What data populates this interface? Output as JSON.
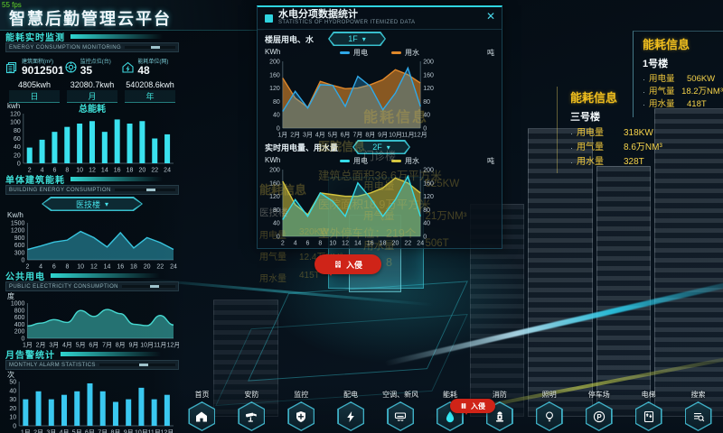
{
  "fps": "55 fps",
  "header": {
    "title": "智慧后勤管理云平台"
  },
  "sidebar": {
    "sections": {
      "monitor": {
        "title": "能耗实时监测",
        "subtitle": "ENERGY CONSUMPTION MONITORING"
      },
      "building": {
        "title": "单体建筑能耗",
        "subtitle": "BUILDING ENERGY CONSUMPTION",
        "dropdown": "医技楼"
      },
      "public": {
        "title": "公共用电",
        "subtitle": "PUBLIC ELECTRICITY CONSUMPTION"
      },
      "alarm": {
        "title": "月告警统计",
        "subtitle": "MONTHLY ALARM STATISTICS"
      }
    },
    "stats": [
      {
        "icon": "building-area-icon",
        "label": "建筑面积(m²)",
        "value": "9012501"
      },
      {
        "icon": "monitor-point-icon",
        "label": "监控点位(台)",
        "value": "35"
      },
      {
        "icon": "energy-unit-icon",
        "label": "能耗单位(网)",
        "value": "48"
      }
    ],
    "period_stats": [
      {
        "value": "4805kwh",
        "label": "日"
      },
      {
        "value": "32080.7kwh",
        "label": "月"
      },
      {
        "value": "540208.6kwh",
        "label": "年"
      }
    ],
    "total_title": "总能耗"
  },
  "modal": {
    "title": "水电分项数据统计",
    "subtitle": "STATISTICS OF HYDROPOWER ITEMIZED DATA",
    "close": "✕",
    "section1": {
      "label": "楼层用电、水",
      "dropdown": "1F"
    },
    "section2": {
      "label": "实时用电量、用水量",
      "dropdown": "2F"
    }
  },
  "right_panels": [
    {
      "title": "能耗信息",
      "building": "1号楼",
      "rows": [
        {
          "label": "用电量",
          "value": "506KW"
        },
        {
          "label": "用气量",
          "value": "18.2万NM³"
        },
        {
          "label": "用水量",
          "value": "418T"
        }
      ]
    },
    {
      "title": "能耗信息",
      "building": "三号楼",
      "rows": [
        {
          "label": "用电量",
          "value": "318KW"
        },
        {
          "label": "用气量",
          "value": "8.6万NM³"
        },
        {
          "label": "用水量",
          "value": "328T"
        }
      ]
    }
  ],
  "scene_labels": {
    "menzhen": {
      "title": "能耗信息",
      "building": "门诊楼",
      "rows": [
        {
          "label": "用电量",
          "value": "525KW"
        },
        {
          "label": "用气量",
          "value": "21万NM³"
        },
        {
          "label": "用水量",
          "value": "506T"
        }
      ]
    },
    "hospital": {
      "title": "医院信息",
      "lines": [
        "建筑总面积36.6万平方米",
        "医院面积18.9万平方米",
        "室外停车位：219个",
        "地下停车位：8"
      ]
    },
    "yiji": {
      "title": "能耗信息",
      "building": "医技楼",
      "rows": [
        {
          "label": "用电量",
          "value": "320KW"
        },
        {
          "label": "用气量",
          "value": "12.4万NM³"
        },
        {
          "label": "用水量",
          "value": "415T"
        }
      ]
    }
  },
  "alarm": {
    "label": "入侵"
  },
  "nav": {
    "items": [
      {
        "icon": "home-icon",
        "label": "首页"
      },
      {
        "icon": "camera-icon",
        "label": "安防"
      },
      {
        "icon": "shield-icon",
        "label": "监控"
      },
      {
        "icon": "lightning-icon",
        "label": "配电"
      },
      {
        "icon": "ac-icon",
        "label": "空调、新风"
      },
      {
        "icon": "energy-drop-icon",
        "label": "能耗"
      },
      {
        "icon": "hydrant-icon",
        "label": "消防"
      },
      {
        "icon": "bulb-icon",
        "label": "照明"
      },
      {
        "icon": "parking-icon",
        "label": "停车场"
      },
      {
        "icon": "elevator-icon",
        "label": "电梯"
      },
      {
        "icon": "search-icon",
        "label": "搜索"
      }
    ]
  },
  "colors": {
    "accent": "#3fe0d8",
    "bar": "#3ae1ee",
    "blue": "#2fa8e8",
    "orange": "#e0882a",
    "cyan": "#35dce8",
    "yellow_line": "#d4c43e",
    "panel_yellow": "#f2c01e",
    "alarm_red": "#cf2418"
  },
  "chart_data": {
    "total_energy": {
      "type": "bar",
      "unit": "kwh",
      "title": "总能耗",
      "categories": [
        "2",
        "4",
        "6",
        "8",
        "10",
        "12",
        "14",
        "16",
        "18",
        "20",
        "22",
        "24"
      ],
      "values": [
        38,
        57,
        76,
        88,
        96,
        102,
        76,
        106,
        96,
        102,
        60,
        70
      ],
      "yticks": [
        0,
        20,
        40,
        60,
        80,
        100,
        120
      ],
      "ymax": 120,
      "color": "#3ae1ee"
    },
    "building_energy": {
      "type": "area",
      "unit": "Kw/h",
      "smooth": false,
      "categories": [
        "2",
        "4",
        "6",
        "8",
        "10",
        "12",
        "14",
        "16",
        "18",
        "20",
        "22",
        "24"
      ],
      "values": [
        420,
        560,
        720,
        800,
        1150,
        900,
        520,
        1100,
        480,
        900,
        700,
        420
      ],
      "yticks": [
        0,
        300,
        600,
        900,
        1200,
        1500
      ],
      "ymax": 1500,
      "color": "#38c4de",
      "fillOpacity": 0.45
    },
    "public_electricity": {
      "type": "area",
      "unit": "度",
      "smooth": true,
      "categories": [
        "1月",
        "2月",
        "3月",
        "4月",
        "5月",
        "6月",
        "7月",
        "8月",
        "9月",
        "10月",
        "11月",
        "12月"
      ],
      "values": [
        350,
        430,
        530,
        450,
        790,
        620,
        820,
        700,
        400,
        360,
        650,
        380
      ],
      "yticks": [
        0,
        200,
        400,
        600,
        800,
        1000
      ],
      "ymax": 1000,
      "color": "#46d8d0",
      "fillOpacity": 0.5
    },
    "monthly_alarm": {
      "type": "bar",
      "unit": "次",
      "categories": [
        "1月",
        "2月",
        "3月",
        "4月",
        "5月",
        "6月",
        "7月",
        "8月",
        "9月",
        "10月",
        "11月",
        "12月"
      ],
      "values": [
        30,
        39,
        30,
        35,
        39,
        48,
        39,
        27,
        30,
        43,
        30,
        35
      ],
      "yticks": [
        0,
        10,
        20,
        30,
        40,
        50
      ],
      "ymax": 50,
      "color": "#3ac8f0"
    },
    "floor_usage": {
      "type": "multi",
      "dual": true,
      "unit_left": "KWh",
      "unit_right": "吨",
      "categories": [
        "1月",
        "2月",
        "3月",
        "4月",
        "5月",
        "6月",
        "7月",
        "8月",
        "9月",
        "10月",
        "11月",
        "12月"
      ],
      "yticks": [
        0,
        40,
        80,
        120,
        160,
        200
      ],
      "ymax": 200,
      "legend": [
        {
          "name": "用电",
          "color": "#2fa8e8"
        },
        {
          "name": "用水",
          "color": "#e0882a"
        }
      ],
      "series": [
        {
          "name": "用水",
          "color": "#e0882a",
          "fill": 0.6,
          "values": [
            150,
            90,
            62,
            140,
            128,
            118,
            120,
            130,
            145,
            175,
            160,
            135
          ]
        },
        {
          "name": "用电",
          "color": "#2fa8e8",
          "fill": 0.3,
          "values": [
            50,
            110,
            60,
            130,
            128,
            65,
            155,
            125,
            55,
            105,
            180,
            65
          ]
        }
      ]
    },
    "realtime_usage": {
      "type": "multi",
      "dual": true,
      "unit_left": "KWh",
      "unit_right": "吨",
      "categories": [
        "2",
        "4",
        "6",
        "8",
        "10",
        "12",
        "14",
        "16",
        "18",
        "20",
        "22",
        "24"
      ],
      "yticks": [
        0,
        40,
        80,
        120,
        160,
        200
      ],
      "ymax": 200,
      "legend": [
        {
          "name": "用电",
          "color": "#35dce8"
        },
        {
          "name": "用水",
          "color": "#d4c43e"
        }
      ],
      "series": [
        {
          "name": "用水",
          "color": "#d4c43e",
          "fill": 0.55,
          "values": [
            165,
            95,
            65,
            130,
            125,
            120,
            120,
            130,
            145,
            175,
            160,
            130
          ]
        },
        {
          "name": "用电",
          "color": "#35dce8",
          "fill": 0.3,
          "values": [
            50,
            110,
            60,
            130,
            105,
            60,
            160,
            115,
            60,
            110,
            180,
            60
          ]
        }
      ]
    }
  }
}
